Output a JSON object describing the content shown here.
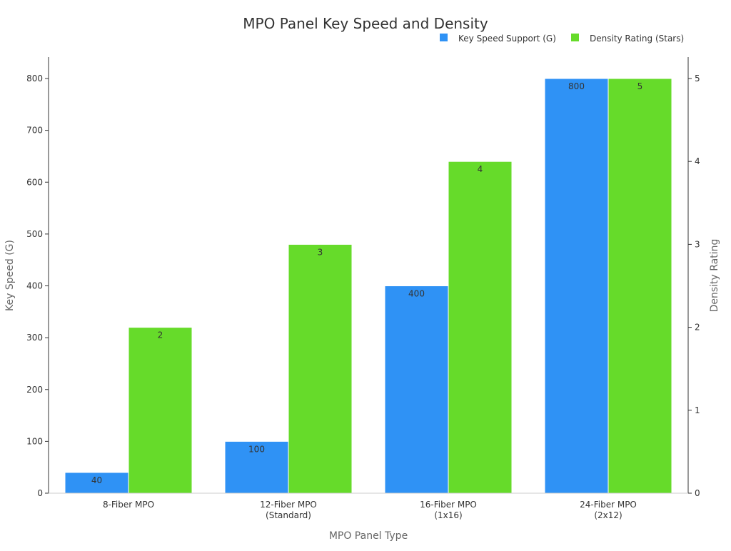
{
  "chart_data": {
    "type": "bar",
    "title": "MPO Panel Key Speed and Density",
    "xlabel": "MPO Panel Type",
    "ylabel": "Key Speed (G)",
    "y2label": "Density Rating",
    "categories": [
      [
        "8-Fiber MPO"
      ],
      [
        "12-Fiber MPO",
        "(Standard)"
      ],
      [
        "16-Fiber MPO",
        "(1x16)"
      ],
      [
        "24-Fiber MPO",
        "(2x12)"
      ]
    ],
    "series": [
      {
        "name": "Key Speed Support (G)",
        "axis": "left",
        "color": "#2f92f5",
        "values": [
          40,
          100,
          400,
          800
        ]
      },
      {
        "name": "Density Rating (Stars)",
        "axis": "right",
        "color": "#66db2a",
        "values": [
          2,
          3,
          4,
          5
        ]
      }
    ],
    "ylim": [
      0,
      800
    ],
    "y2lim": [
      0,
      5
    ],
    "yticks": [
      0,
      100,
      200,
      300,
      400,
      500,
      600,
      700,
      800
    ],
    "y2ticks": [
      0,
      1,
      2,
      3,
      4,
      5
    ],
    "grid": false,
    "legend": "top-right"
  }
}
